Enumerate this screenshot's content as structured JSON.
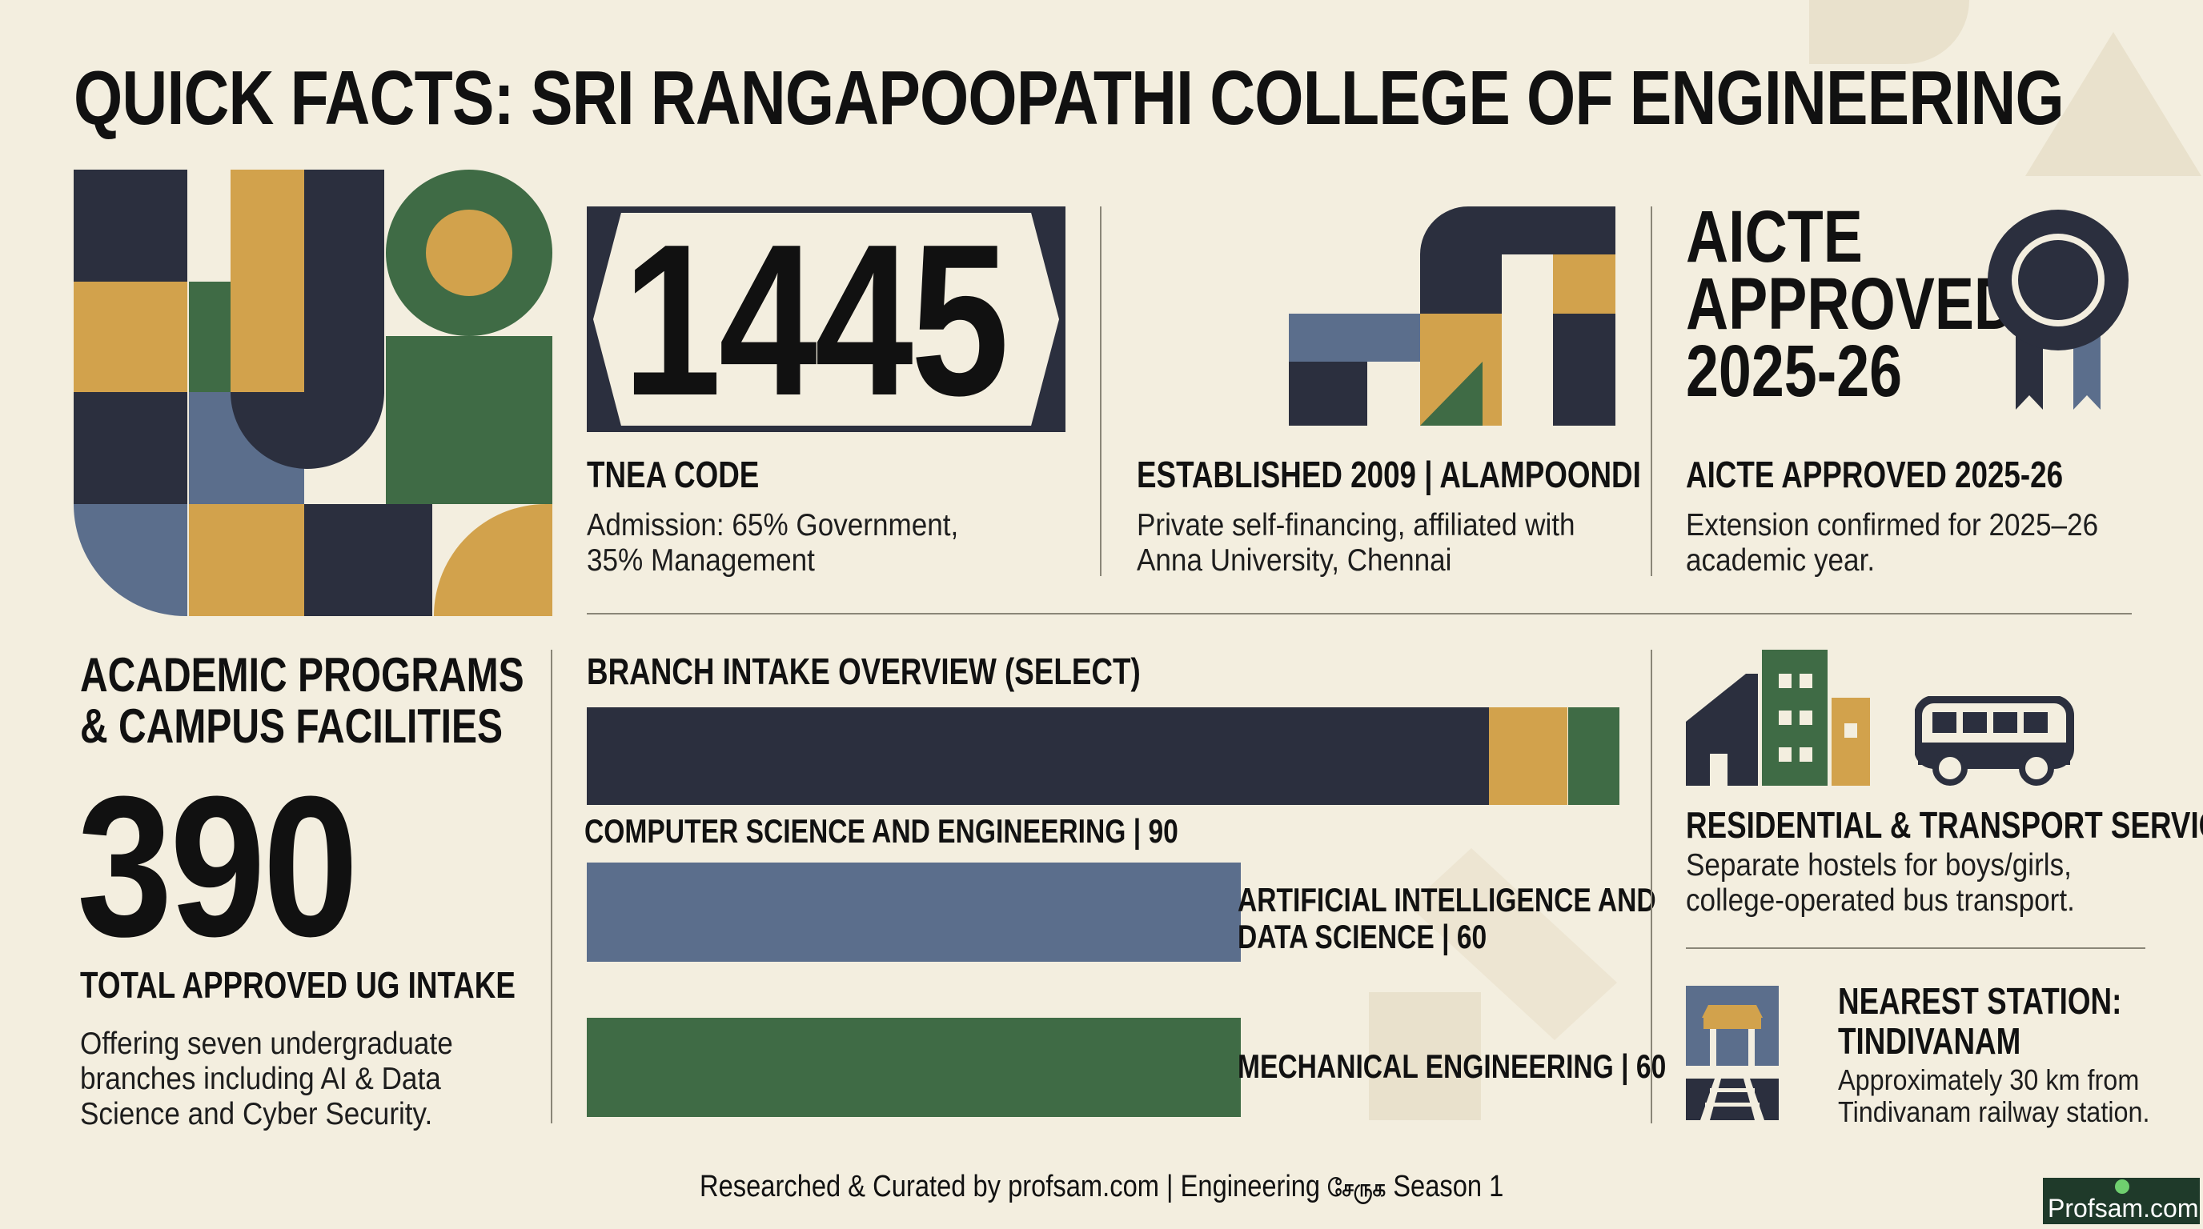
{
  "title": "QUICK FACTS: SRI RANGAPOOPATHI COLLEGE OF ENGINEERING",
  "tnea": {
    "code": "1445",
    "heading": "TNEA CODE",
    "line1": "Admission: 65% Government,",
    "line2": "35% Management"
  },
  "established": {
    "heading": "ESTABLISHED 2009 | ALAMPOONDI",
    "line1": "Private self-financing, affiliated with",
    "line2": "Anna University, Chennai"
  },
  "aicte": {
    "badge_line1": "AICTE",
    "badge_line2": "APPROVED",
    "badge_line3": "2025-26",
    "heading": "AICTE APPROVED 2025-26",
    "line1": "Extension confirmed for 2025–26",
    "line2": "academic year.",
    "icon": "rosette-badge-icon"
  },
  "programs": {
    "heading_line1": "ACADEMIC PROGRAMS",
    "heading_line2": "& CAMPUS FACILITIES",
    "total": "390",
    "total_label": "TOTAL APPROVED UG INTAKE",
    "line1": "Offering seven undergraduate",
    "line2": "branches including AI & Data",
    "line3": "Science and Cyber Security."
  },
  "chart_data": {
    "type": "bar",
    "title": "BRANCH INTAKE OVERVIEW (SELECT)",
    "categories": [
      "COMPUTER SCIENCE AND ENGINEERING",
      "ARTIFICIAL INTELLIGENCE AND DATA SCIENCE",
      "MECHANICAL ENGINEERING"
    ],
    "values": [
      90,
      60,
      60
    ],
    "labels": [
      "COMPUTER SCIENCE AND ENGINEERING | 90",
      "ARTIFICIAL INTELLIGENCE AND",
      "DATA SCIENCE | 60",
      "MECHANICAL ENGINEERING | 60"
    ],
    "colors": [
      "#2b2f3e",
      "#5b6e8c",
      "#3f6b45"
    ],
    "accent_colors": [
      "#d2a24c",
      "#3f6b45"
    ]
  },
  "residential": {
    "heading": "RESIDENTIAL & TRANSPORT SERVICES",
    "line1": "Separate hostels for boys/girls,",
    "line2": "college-operated bus transport.",
    "icons": [
      "buildings-icon",
      "bus-icon"
    ]
  },
  "station": {
    "heading_line1": "NEAREST STATION:",
    "heading_line2": "TINDIVANAM",
    "line1": "Approximately 30 km from",
    "line2": "Tindivanam railway station.",
    "icon": "railway-station-icon"
  },
  "footer": {
    "credit_prefix": "Researched & Curated by profsam.com | Engineering",
    "credit_tamil": "சேருக",
    "credit_suffix": "Season 1",
    "logo_text": "Profsam.com"
  },
  "colors": {
    "background": "#f3eedf",
    "navy": "#2b2f3e",
    "gold": "#d2a24c",
    "green": "#3f6b45",
    "slate": "#5b6e8c"
  }
}
